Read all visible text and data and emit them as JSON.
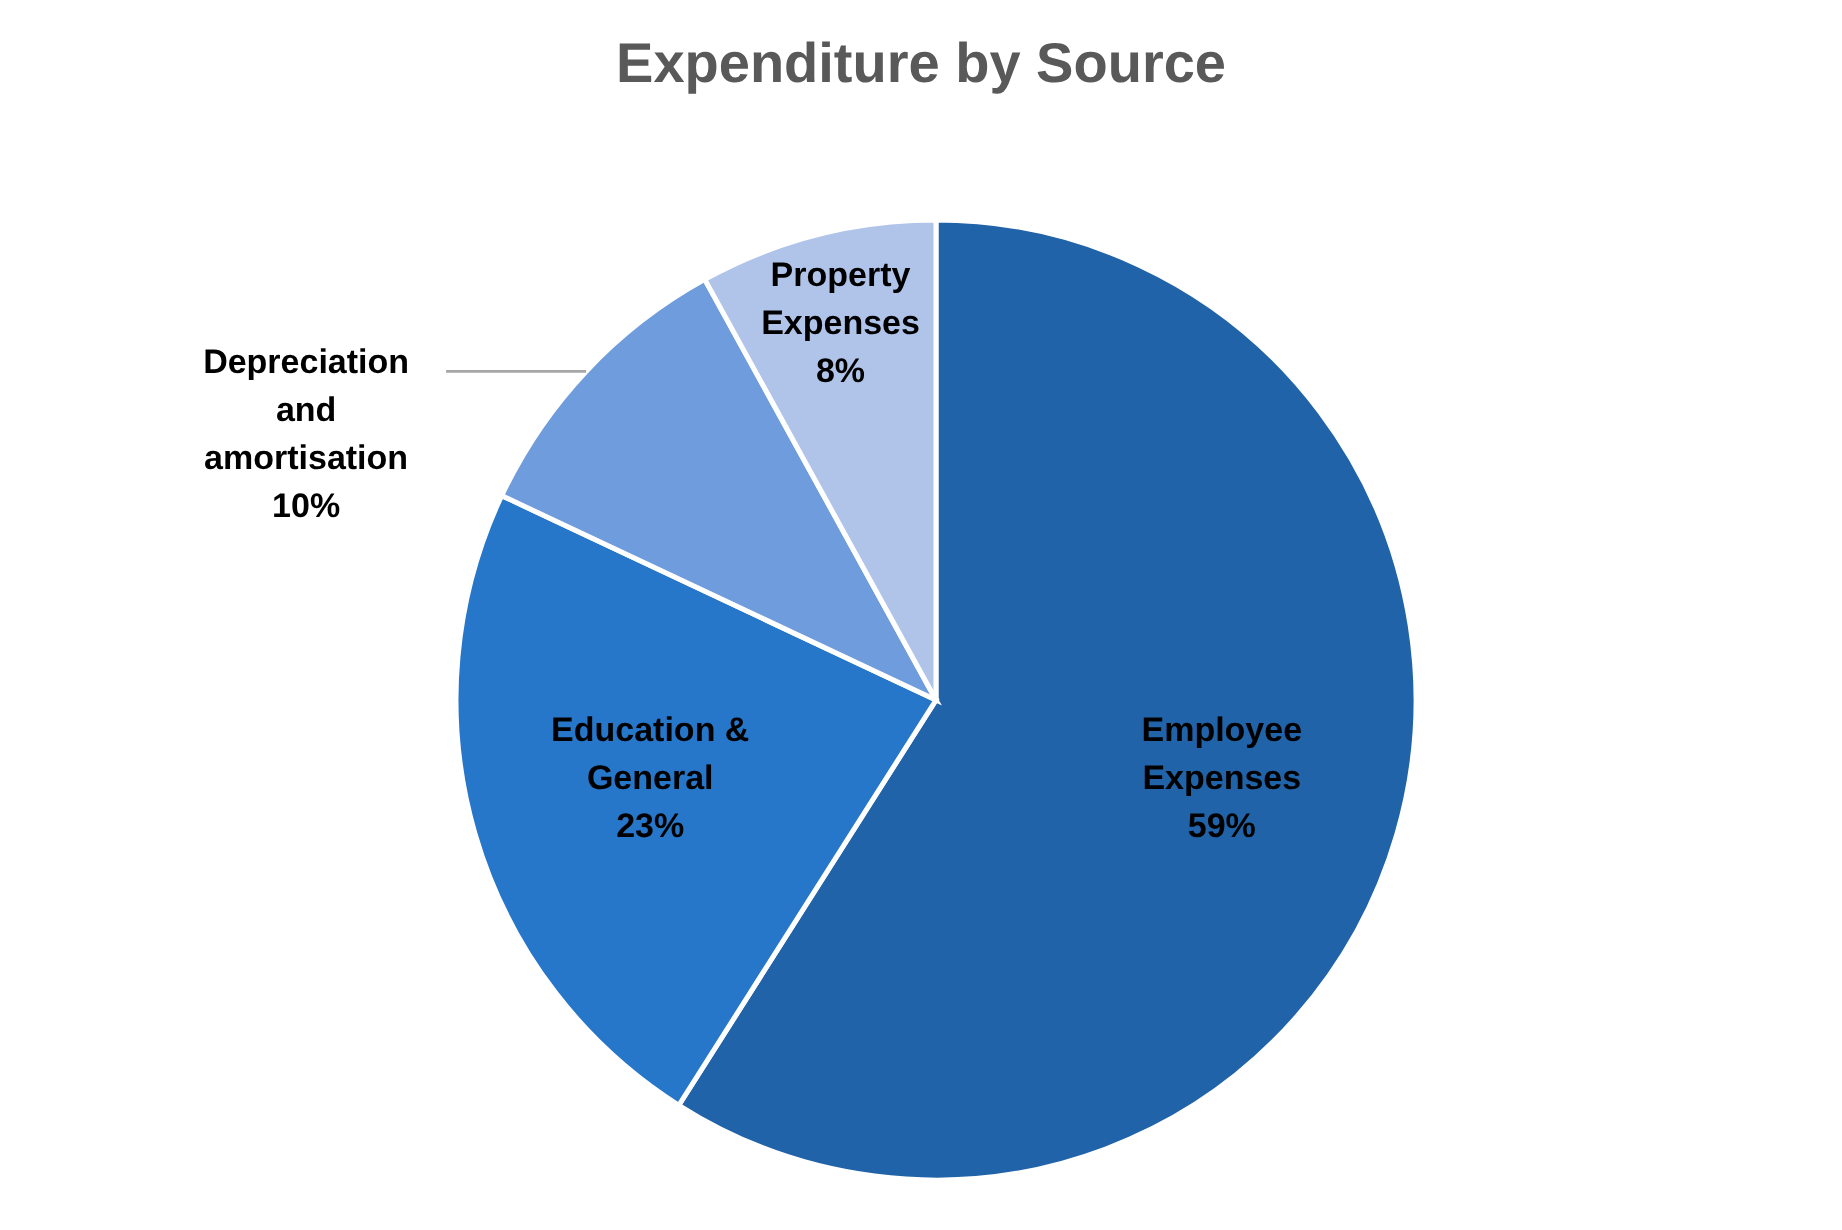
{
  "chart_data": {
    "type": "pie",
    "title": "Expenditure by Source",
    "categories": [
      "Employee Expenses",
      "Education & General",
      "Depreciation and amortisation",
      "Property Expenses"
    ],
    "values": [
      59,
      23,
      10,
      8
    ],
    "colors": [
      "#2163a8",
      "#2676c9",
      "#6f9cdc",
      "#b0c4ea"
    ],
    "value_labels": [
      "59%",
      "23%",
      "10%",
      "8%"
    ],
    "legend": false
  }
}
